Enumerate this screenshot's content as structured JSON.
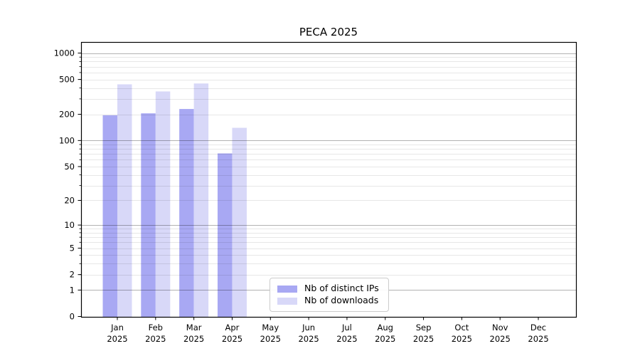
{
  "chart_data": {
    "type": "bar",
    "title": "PECA 2025",
    "categories": [
      "Jan",
      "Feb",
      "Mar",
      "Apr",
      "May",
      "Jun",
      "Jul",
      "Aug",
      "Sep",
      "Oct",
      "Nov",
      "Dec"
    ],
    "category_year": "2025",
    "series": [
      {
        "name": "Nb of distinct IPs",
        "color": "#a8a8f3",
        "values": [
          195,
          205,
          230,
          71,
          0,
          0,
          0,
          0,
          0,
          0,
          0,
          0
        ]
      },
      {
        "name": "Nb of downloads",
        "color": "#d8d8f8",
        "values": [
          440,
          365,
          450,
          140,
          0,
          0,
          0,
          0,
          0,
          0,
          0,
          0
        ]
      }
    ],
    "xlabel": "",
    "ylabel": "",
    "yscale": "log10(value+1)",
    "yticks": [
      0,
      1,
      2,
      5,
      10,
      20,
      50,
      100,
      200,
      500,
      1000
    ],
    "ylim": [
      0,
      1340
    ],
    "grid": "both",
    "grid_major_color": "#b3b3b3",
    "grid_minor_color": "#e7e7e7",
    "axis_color": "#000000",
    "legend_position": "lower center",
    "legend_border_color": "#cccccc"
  }
}
